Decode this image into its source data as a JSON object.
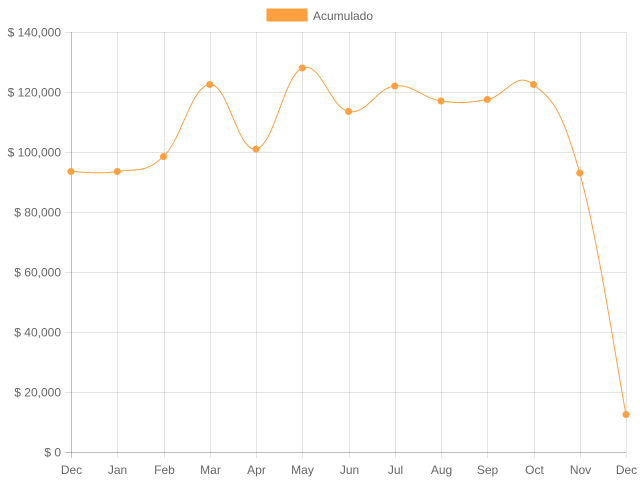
{
  "chart_data": {
    "type": "line",
    "title": "",
    "xlabel": "",
    "ylabel": "",
    "categories": [
      "Dec",
      "Jan",
      "Feb",
      "Mar",
      "Apr",
      "May",
      "Jun",
      "Jul",
      "Aug",
      "Sep",
      "Oct",
      "Nov",
      "Dec"
    ],
    "series": [
      {
        "name": "Acumulado",
        "color": "#ffa040",
        "values": [
          93500,
          93500,
          98500,
          122500,
          101000,
          128000,
          113500,
          122000,
          117000,
          117500,
          122500,
          93000,
          12500
        ]
      }
    ],
    "ylim": [
      0,
      140000
    ],
    "yticks": [
      0,
      20000,
      40000,
      60000,
      80000,
      100000,
      120000,
      140000
    ],
    "ytick_labels": [
      "$ 0",
      "$ 20,000",
      "$ 40,000",
      "$ 60,000",
      "$ 80,000",
      "$ 100,000",
      "$ 120,000",
      "$ 140,000"
    ],
    "grid": true,
    "legend": "top-center"
  }
}
